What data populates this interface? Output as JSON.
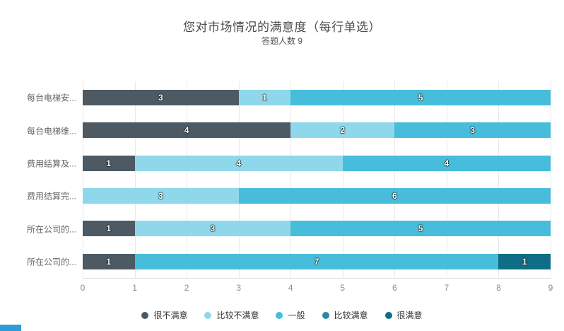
{
  "title": "您对市场情况的满意度（每行单选）",
  "subtitle": "答题人数 9",
  "respondent_count": 9,
  "chart_data": {
    "type": "bar",
    "orientation": "horizontal",
    "stacked": true,
    "title": "您对市场情况的满意度（每行单选）",
    "subtitle": "答题人数 9",
    "categories": [
      "每台电梯安...",
      "每台电梯维...",
      "费用结算及...",
      "费用结算完...",
      "所在公司的...",
      "所在公司的..."
    ],
    "series": [
      {
        "name": "很不满意",
        "color": "#4d5a64",
        "values": [
          3,
          4,
          1,
          0,
          1,
          1
        ]
      },
      {
        "name": "比较不满意",
        "color": "#8fd8eb",
        "values": [
          1,
          2,
          4,
          3,
          3,
          0
        ]
      },
      {
        "name": "一般",
        "color": "#47bddb",
        "values": [
          5,
          3,
          4,
          6,
          5,
          7
        ]
      },
      {
        "name": "比较满意",
        "color": "#2e86a5",
        "values": [
          0,
          0,
          0,
          0,
          0,
          0
        ]
      },
      {
        "name": "很满意",
        "color": "#0f6e87",
        "values": [
          0,
          0,
          0,
          0,
          0,
          1
        ]
      }
    ],
    "xlim": [
      0,
      9
    ],
    "xticks": [
      0,
      1,
      2,
      3,
      4,
      5,
      6,
      7,
      8,
      9
    ],
    "grid": true,
    "gridline_color": "#e9e9e9",
    "legend_position": "bottom"
  },
  "accent_strip_color": "#2f9bd8"
}
